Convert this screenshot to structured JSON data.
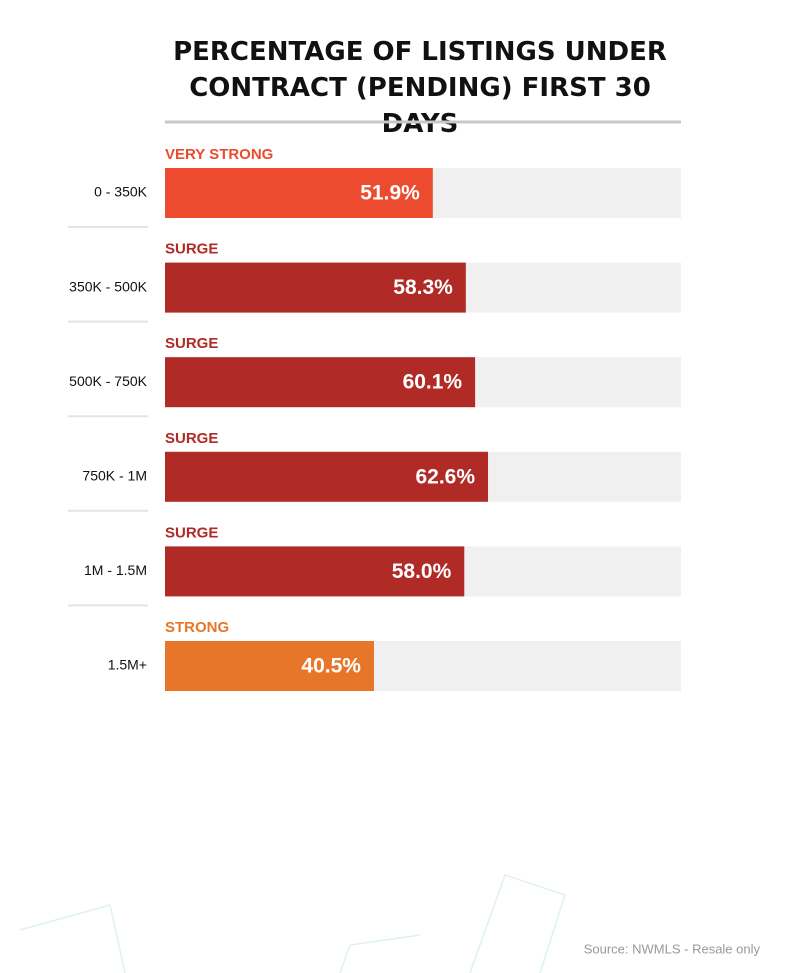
{
  "chart_data": {
    "type": "hbar",
    "title": "PERCENTAGE OF LISTINGS UNDER CONTRACT (PENDING) FIRST 30 DAYS",
    "categories": [
      "0 - 350K",
      "350K - 500K",
      "500K - 750K",
      "750K - 1M",
      "1M - 1.5M",
      "1.5M+"
    ],
    "status_labels": [
      "VERY STRONG",
      "SURGE",
      "SURGE",
      "SURGE",
      "SURGE",
      "STRONG"
    ],
    "values": [
      51.9,
      58.3,
      60.1,
      62.6,
      58.0,
      40.5
    ],
    "value_labels": [
      "51.9%",
      "58.3%",
      "60.1%",
      "62.6%",
      "58.0%",
      "40.5%"
    ],
    "colors": [
      "#ec4b2f",
      "#b02a26",
      "#b02a26",
      "#b02a26",
      "#b02a26",
      "#e8762a"
    ],
    "track_color": "#f0f0f0",
    "xlim": [
      0,
      100
    ],
    "source": "Source: NWMLS - Resale only"
  }
}
